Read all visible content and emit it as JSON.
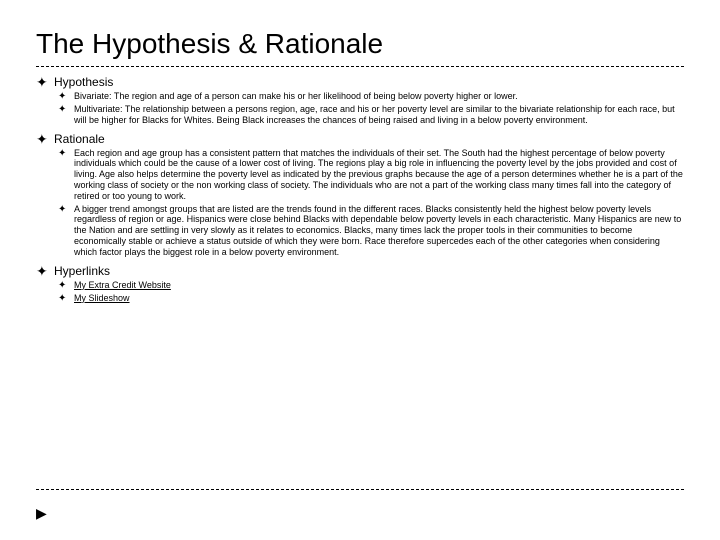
{
  "title": "The Hypothesis & Rationale",
  "sections": {
    "hypothesis": {
      "label": "Hypothesis",
      "items": [
        "Bivariate: The region and age of a person can make his or her likelihood of being below poverty higher or lower.",
        "Multivariate: The relationship between a persons region, age, race and his or her poverty level are similar to the bivariate relationship for each race, but will be higher for Blacks for Whites. Being Black increases the chances of being raised and living in a below poverty environment."
      ]
    },
    "rationale": {
      "label": "Rationale",
      "items": [
        "Each region and age group has a consistent pattern that matches the individuals of their set. The South had the highest percentage of below poverty individuals which could be the cause of a lower cost of living. The regions play a big role in influencing the poverty level by the jobs provided and cost of living. Age also helps determine the poverty level as indicated by the previous graphs because the age of a person determines whether he is a part of the working class of society or the non working class of society. The individuals who are not a part of the working class many times fall into the category of retired or too young to work.",
        "A bigger trend amongst groups that are listed are the trends found in the different races. Blacks consistently held the highest below poverty levels regardless of region or age. Hispanics were close behind Blacks with dependable below poverty levels in each characteristic. Many Hispanics are new to the Nation and are settling in very slowly as it relates to economics. Blacks, many times lack the proper tools in their communities to become economically stable or achieve a status outside of which they were born. Race therefore supercedes each of the other categories when considering which factor plays the biggest role in a below poverty environment."
      ]
    },
    "hyperlinks": {
      "label": "Hyperlinks",
      "items": [
        "My Extra Credit Website",
        "My Slideshow"
      ]
    }
  },
  "bullet_glyph": "✦"
}
